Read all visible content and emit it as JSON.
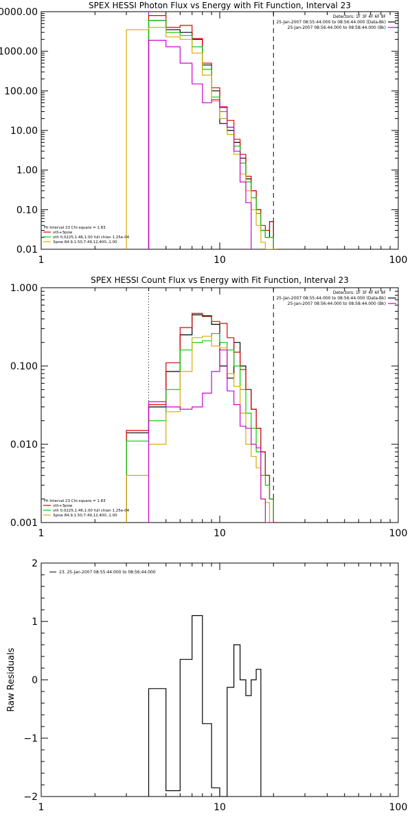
{
  "chart_data": [
    {
      "type": "line",
      "title": "SPEX HESSI Photon Flux vs Energy with Fit Function, Interval 23",
      "xlabel": "",
      "ylabel": "",
      "xscale": "log",
      "yscale": "log",
      "xlim": [
        1,
        100
      ],
      "ylim": [
        0.01,
        10000
      ],
      "xtick_labels": [
        "1",
        "10",
        "100"
      ],
      "xtick_values": [
        1,
        10,
        100
      ],
      "ytick_labels": [
        "0.01",
        "0.10",
        "1.00",
        "10.00",
        "100.00",
        "1000.00",
        "10000.00"
      ],
      "ytick_values": [
        0.01,
        0.1,
        1,
        10,
        100,
        1000,
        10000
      ],
      "header_lines": [
        "Detectors: 1F 3F 4F 6F 9F",
        "25-Jan-2007 08:55:44.000 to 08:56:44.000 (Data-Bk)",
        "25-Jan-2007 08:56:44.000 to 08:58:44.000 (Bk)"
      ],
      "header_colors": [
        "",
        "#000000",
        "#cc00cc"
      ],
      "fit_lines": [
        "Fit Interval 23   Chi-square = 1.83",
        "vth+3pow",
        "vth 0.0225,1.46,1.00  full chian 1.25e-04",
        "3pow 84.9,1.50,7.49,12,400.,1.00"
      ],
      "fit_colors": [
        "",
        "#dd0000",
        "#00cc00",
        "#ddaa00"
      ],
      "vlines": [
        {
          "x": 4,
          "style": "solid",
          "color": "#cc00cc"
        },
        {
          "x": 20,
          "style": "dashed",
          "color": "#000000"
        }
      ],
      "energy_edges": [
        3,
        4,
        5,
        6,
        7,
        8,
        9,
        10,
        11,
        12,
        13,
        14,
        15,
        16,
        17,
        18,
        19,
        20,
        21
      ],
      "series": [
        {
          "color": "#000000",
          "values": [
            null,
            6000,
            3500,
            3000,
            2000,
            450,
            100,
            15,
            10,
            5,
            2,
            0.6,
            0.3,
            0.1,
            0.03,
            0.02,
            0.05,
            0.01
          ]
        },
        {
          "color": "#dd0000",
          "values": [
            null,
            8000,
            4000,
            4500,
            2100,
            500,
            120,
            40,
            18,
            6,
            2.5,
            0.7,
            0.3,
            0.1,
            0.04,
            0.03,
            0.05,
            0.01
          ]
        },
        {
          "color": "#00cc00",
          "values": [
            null,
            6000,
            3000,
            2500,
            1300,
            350,
            70,
            30,
            12,
            4,
            1.5,
            0.5,
            0.2,
            0.08,
            0.03,
            0.02,
            0.02,
            0.01
          ]
        },
        {
          "color": "#ddaa00",
          "values": [
            3500,
            4000,
            2300,
            2000,
            900,
            250,
            55,
            20,
            8,
            2.5,
            0.8,
            0.3,
            0.1,
            0.04,
            0.015,
            0.01,
            0.01,
            0.01
          ]
        },
        {
          "color": "#cc00cc",
          "values": [
            null,
            1900,
            1300,
            500,
            150,
            50,
            60,
            38,
            12,
            3,
            0.5,
            0.15,
            null,
            null,
            null,
            null,
            null,
            null
          ]
        }
      ]
    },
    {
      "type": "line",
      "title": "SPEX HESSI Count Flux vs Energy with Fit Function, Interval 23",
      "xlabel": "",
      "ylabel": "",
      "xscale": "log",
      "yscale": "log",
      "xlim": [
        1,
        100
      ],
      "ylim": [
        0.001,
        1
      ],
      "xtick_labels": [
        "1",
        "10",
        "100"
      ],
      "xtick_values": [
        1,
        10,
        100
      ],
      "ytick_labels": [
        "0.001",
        "0.010",
        "0.100",
        "1.000"
      ],
      "ytick_values": [
        0.001,
        0.01,
        0.1,
        1
      ],
      "header_lines": [
        "Detectors: 1F 3F 4F 6F 9F",
        "25-Jan-2007 08:55:44.000 to 08:56:44.000 (Data-Bk)",
        "25-Jan-2007 08:56:44.000 to 08:58:44.000 (Bk)"
      ],
      "header_colors": [
        "",
        "#000000",
        "#cc00cc"
      ],
      "fit_lines": [
        "Fit Interval 23   Chi-square = 1.83",
        "vth+3pow",
        "vth 0.0225,1.46,1.00  full chian 1.25e-04",
        "3pow 84.9,1.50,7.49,12,400.,1.00"
      ],
      "fit_colors": [
        "",
        "#dd0000",
        "#00cc00",
        "#ddaa00"
      ],
      "vlines": [
        {
          "x": 4,
          "style": "dotted",
          "color": "#000000"
        },
        {
          "x": 20,
          "style": "dashed",
          "color": "#000000"
        }
      ],
      "energy_edges": [
        3,
        4,
        5,
        6,
        7,
        8,
        9,
        10,
        11,
        12,
        13,
        14,
        15,
        16,
        17,
        18,
        19,
        20,
        21
      ],
      "series": [
        {
          "color": "#000000",
          "values": [
            0.014,
            0.03,
            0.085,
            0.25,
            0.45,
            0.43,
            0.34,
            0.1,
            0.07,
            0.2,
            0.1,
            0.05,
            0.028,
            0.016,
            0.008,
            0.004,
            0.002,
            0.001
          ]
        },
        {
          "color": "#dd0000",
          "values": [
            0.015,
            0.032,
            0.11,
            0.31,
            0.47,
            0.44,
            0.37,
            0.35,
            0.23,
            0.15,
            0.09,
            0.05,
            0.028,
            0.016,
            0.008,
            0.004,
            0.002,
            0.001
          ]
        },
        {
          "color": "#00cc00",
          "values": [
            0.011,
            0.02,
            0.05,
            0.16,
            0.2,
            0.21,
            0.26,
            0.2,
            0.16,
            0.1,
            0.05,
            0.025,
            0.016,
            0.008,
            0.004,
            0.003,
            0.002,
            0.001
          ]
        },
        {
          "color": "#ddaa00",
          "values": [
            0.004,
            0.01,
            0.026,
            0.085,
            0.23,
            0.24,
            0.18,
            0.17,
            0.08,
            0.055,
            0.025,
            0.01,
            0.007,
            0.005,
            0.002,
            0.0018,
            0.001,
            0.001
          ]
        },
        {
          "color": "#cc00cc",
          "values": [
            null,
            0.035,
            0.03,
            0.028,
            0.03,
            0.045,
            0.085,
            0.16,
            0.048,
            0.032,
            0.017,
            0.016,
            0.01,
            0.009,
            0.002,
            0.001,
            0.001,
            0.001
          ]
        }
      ]
    },
    {
      "type": "line",
      "title": "",
      "xlabel": "",
      "ylabel": "Raw Residuals",
      "xscale": "log",
      "yscale": "linear",
      "xlim": [
        1,
        100
      ],
      "ylim": [
        -2,
        2
      ],
      "xtick_labels": [
        "1",
        "10",
        "100"
      ],
      "xtick_values": [
        1,
        10,
        100
      ],
      "ytick_labels": [
        "2",
        "1",
        "0",
        "−1",
        "−2"
      ],
      "ytick_values": [
        2,
        1,
        0,
        -1,
        -2
      ],
      "legend": "23. 25-Jan-2007 08:55:44.000 to 08:56:44.000",
      "energy_edges": [
        3,
        4,
        5,
        6,
        7,
        8,
        9,
        10,
        11,
        12,
        13,
        14,
        15,
        16,
        17,
        18,
        19,
        20,
        21
      ],
      "series": [
        {
          "color": "#000000",
          "values": [
            null,
            -0.15,
            -1.9,
            0.35,
            1.1,
            -0.75,
            -1.85,
            -2.0,
            -0.13,
            0.6,
            0.0,
            -0.27,
            0.0,
            0.18,
            null,
            null,
            null,
            null
          ]
        }
      ]
    }
  ]
}
